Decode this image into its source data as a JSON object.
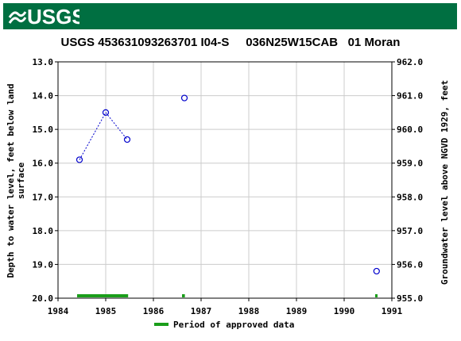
{
  "header": {
    "logo_text": "USGS",
    "bg_color": "#006f41"
  },
  "chart_data": {
    "type": "scatter",
    "title": "USGS 453631093263701 I04-S     036N25W15CAB   01 Moran",
    "ylabel_left": "Depth to water level, feet below land surface",
    "ylabel_right": "Groundwater level above NGVD 1929, feet",
    "x_ticks": [
      "1984",
      "1985",
      "1986",
      "1987",
      "1988",
      "1989",
      "1990",
      "1991"
    ],
    "x_range": [
      1984,
      1991
    ],
    "y_left_ticks": [
      "13.0",
      "14.0",
      "15.0",
      "16.0",
      "17.0",
      "18.0",
      "19.0",
      "20.0"
    ],
    "y_left_range": [
      13.0,
      20.0
    ],
    "y_left_inverted": true,
    "y_right_ticks": [
      "962.0",
      "961.0",
      "960.0",
      "959.0",
      "958.0",
      "957.0",
      "956.0",
      "955.0"
    ],
    "y_right_range": [
      962.0,
      955.0
    ],
    "grid": true,
    "series": [
      {
        "points": [
          {
            "x": 1984.45,
            "y": 15.9
          },
          {
            "x": 1985.0,
            "y": 14.5
          },
          {
            "x": 1985.45,
            "y": 15.3
          },
          {
            "x": 1986.65,
            "y": 14.07
          },
          {
            "x": 1990.68,
            "y": 19.2
          }
        ],
        "connected_segments": [
          [
            0,
            1
          ],
          [
            1,
            2
          ]
        ],
        "marker_color": "#0000cc"
      }
    ],
    "approved_periods": [
      {
        "start": 1984.4,
        "end": 1985.47
      },
      {
        "start": 1986.6,
        "end": 1986.66
      },
      {
        "start": 1990.65,
        "end": 1990.7
      }
    ],
    "approved_color": "#1a9e1a",
    "legend": {
      "label": "Period of approved data",
      "placement": "bottom-center"
    }
  }
}
